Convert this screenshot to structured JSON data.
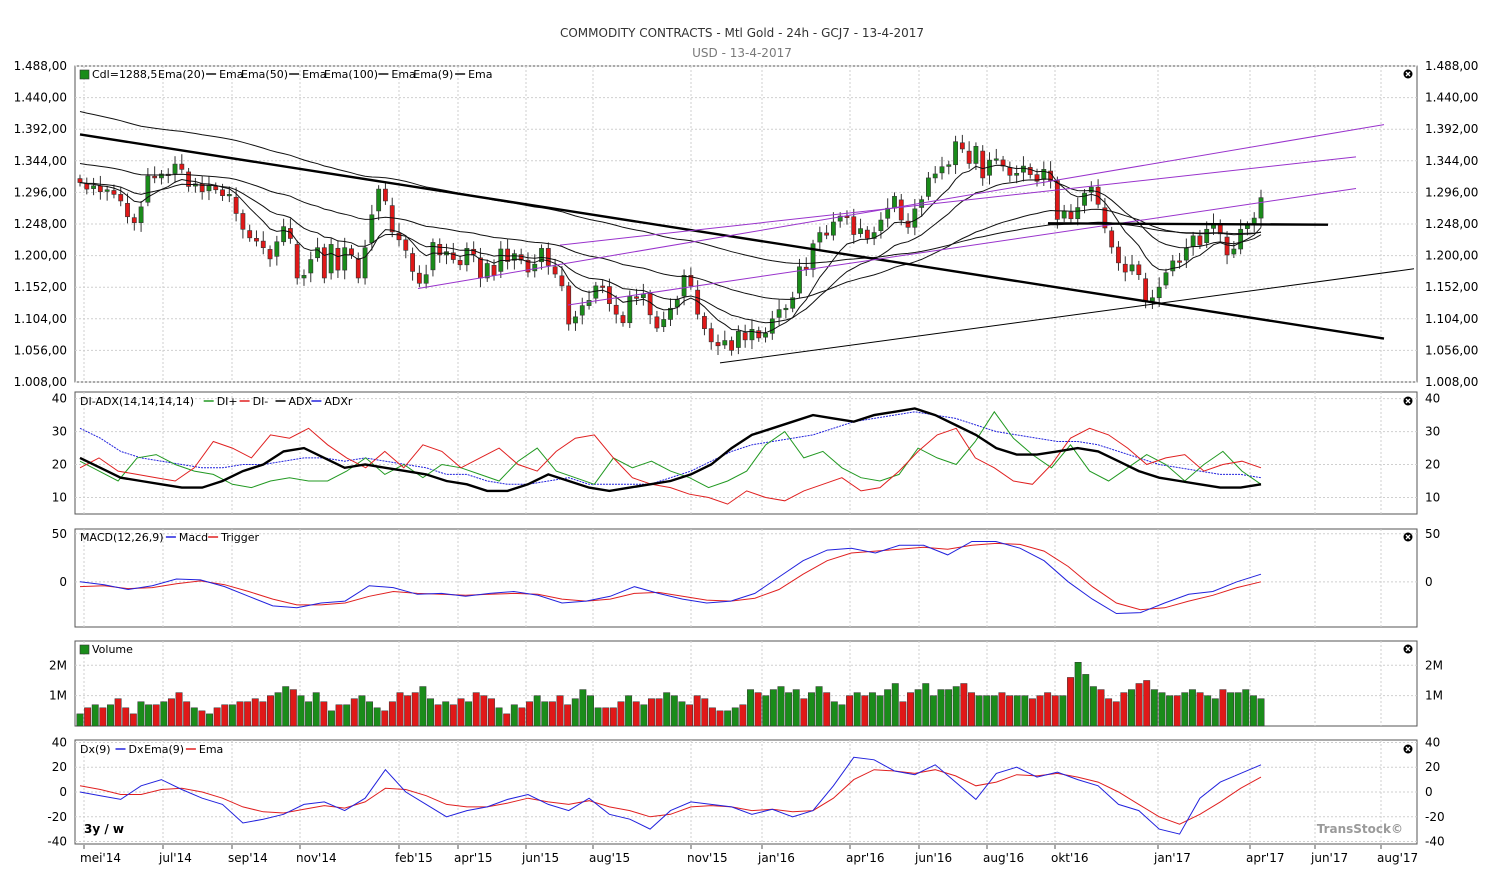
{
  "title": "COMMODITY CONTRACTS - Mtl Gold - 24h - GCJ7 - 13-4-2017",
  "subtitle": "USD - 13-4-2017",
  "period_label": "3y / w",
  "watermark": "TransStock©",
  "colors": {
    "up": "#1a8c1a",
    "down": "#e01818",
    "purple": "#9933cc",
    "blue": "#2222dd",
    "red": "#e02020",
    "green": "#229922"
  },
  "chart_data": [
    {
      "panel": "price",
      "type": "candlestick",
      "legend": [
        "Cdl=1288,5",
        "Ema(20)",
        "Ema",
        "Ema(50)",
        "Ema",
        "Ema(100)",
        "Ema",
        "Ema(9)",
        "Ema"
      ],
      "y_ticks": [
        "1.008,00",
        "1.056,00",
        "1.104,00",
        "1.152,00",
        "1.200,00",
        "1.248,00",
        "1.296,00",
        "1.344,00",
        "1.392,00",
        "1.440,00",
        "1.488,00"
      ],
      "ylim": [
        1008,
        1488
      ],
      "last_close": 1288.5,
      "close": [
        1311,
        1301,
        1306,
        1297,
        1300,
        1293,
        1283,
        1259,
        1250,
        1274,
        1321,
        1318,
        1324,
        1322,
        1339,
        1331,
        1305,
        1309,
        1297,
        1306,
        1300,
        1291,
        1293,
        1264,
        1240,
        1227,
        1222,
        1212,
        1195,
        1221,
        1244,
        1226,
        1166,
        1170,
        1194,
        1212,
        1166,
        1217,
        1178,
        1212,
        1201,
        1166,
        1212,
        1262,
        1301,
        1283,
        1236,
        1224,
        1208,
        1176,
        1158,
        1171,
        1220,
        1201,
        1206,
        1194,
        1186,
        1211,
        1202,
        1166,
        1188,
        1170,
        1210,
        1191,
        1203,
        1193,
        1175,
        1187,
        1211,
        1185,
        1172,
        1154,
        1096,
        1107,
        1124,
        1132,
        1154,
        1153,
        1127,
        1111,
        1098,
        1138,
        1135,
        1142,
        1110,
        1090,
        1103,
        1120,
        1133,
        1170,
        1154,
        1111,
        1089,
        1069,
        1063,
        1071,
        1056,
        1085,
        1072,
        1088,
        1075,
        1082,
        1104,
        1118,
        1120,
        1136,
        1183,
        1179,
        1218,
        1235,
        1231,
        1251,
        1260,
        1259,
        1232,
        1241,
        1226,
        1235,
        1254,
        1272,
        1290,
        1254,
        1243,
        1271,
        1285,
        1318,
        1324,
        1335,
        1338,
        1373,
        1362,
        1340,
        1366,
        1318,
        1345,
        1347,
        1336,
        1322,
        1325,
        1336,
        1323,
        1313,
        1331,
        1314,
        1255,
        1268,
        1256,
        1273,
        1295,
        1304,
        1278,
        1242,
        1213,
        1189,
        1175,
        1186,
        1171,
        1130,
        1136,
        1152,
        1174,
        1192,
        1190,
        1211,
        1230,
        1216,
        1240,
        1249,
        1233,
        1201,
        1210,
        1240,
        1246,
        1257,
        1288
      ],
      "trendlines": [
        {
          "from": [
            "2014-05",
            1384
          ],
          "to": [
            "2017-07",
            1074
          ],
          "style": "thick"
        },
        {
          "from": [
            "2015-03",
            1150
          ],
          "to": [
            "2017-07",
            1399
          ],
          "style": "purple"
        },
        {
          "from": [
            "2015-04",
            1216
          ],
          "to": [
            "2017-06",
            1350
          ],
          "style": "purple"
        },
        {
          "from": [
            "2015-07",
            1125
          ],
          "to": [
            "2017-06",
            1302
          ],
          "style": "purple"
        },
        {
          "from": [
            "2015-12",
            1037
          ],
          "to": [
            "2017-08",
            1180
          ],
          "style": "thin"
        },
        {
          "from": [
            "2016-10",
            1249
          ],
          "to": [
            "2017-05",
            1247
          ],
          "style": "thick"
        }
      ]
    },
    {
      "panel": "adx",
      "type": "line",
      "legend": [
        "DI-ADX(14,14,14,14)",
        "DI+",
        "DI-",
        "ADX",
        "ADXr"
      ],
      "y_ticks": [
        "10",
        "20",
        "30",
        "40"
      ],
      "ylim": [
        5,
        42
      ],
      "series": [
        {
          "name": "DI+",
          "values": [
            21,
            18,
            15,
            22,
            23,
            20,
            18,
            17,
            14,
            13,
            15,
            16,
            15,
            15,
            18,
            22,
            17,
            20,
            16,
            20,
            19,
            17,
            15,
            21,
            25,
            18,
            16,
            14,
            22,
            19,
            21,
            18,
            16,
            13,
            15,
            18,
            26,
            30,
            22,
            24,
            19,
            16,
            15,
            17,
            25,
            22,
            20,
            27,
            36,
            28,
            23,
            19,
            26,
            18,
            15,
            19,
            23,
            20,
            15,
            20,
            24,
            18,
            14
          ]
        },
        {
          "name": "DI-",
          "values": [
            19,
            22,
            18,
            17,
            16,
            15,
            19,
            27,
            25,
            22,
            29,
            28,
            31,
            26,
            22,
            19,
            24,
            19,
            26,
            24,
            19,
            22,
            25,
            20,
            18,
            24,
            28,
            29,
            22,
            16,
            14,
            13,
            11,
            10,
            8,
            12,
            10,
            9,
            12,
            14,
            16,
            12,
            13,
            18,
            24,
            29,
            31,
            22,
            19,
            15,
            14,
            20,
            28,
            31,
            29,
            25,
            20,
            22,
            23,
            18,
            20,
            21,
            19
          ]
        },
        {
          "name": "ADX",
          "values": [
            22,
            19,
            16,
            15,
            14,
            13,
            13,
            15,
            18,
            20,
            24,
            25,
            22,
            19,
            20,
            19,
            18,
            17,
            15,
            14,
            12,
            12,
            14,
            17,
            15,
            13,
            12,
            13,
            14,
            15,
            17,
            20,
            25,
            29,
            31,
            33,
            35,
            34,
            33,
            35,
            36,
            37,
            35,
            32,
            29,
            25,
            23,
            23,
            24,
            25,
            24,
            21,
            18,
            16,
            15,
            14,
            13,
            13,
            14
          ]
        },
        {
          "name": "ADXr",
          "values": [
            31,
            28,
            24,
            22,
            21,
            20,
            19,
            19,
            20,
            20,
            21,
            22,
            22,
            21,
            22,
            21,
            20,
            19,
            17,
            17,
            15,
            14,
            14,
            15,
            16,
            14,
            14,
            14,
            14,
            16,
            18,
            21,
            24,
            26,
            27,
            28,
            29,
            31,
            33,
            34,
            35,
            36,
            35,
            34,
            32,
            30,
            29,
            28,
            27,
            27,
            26,
            24,
            22,
            20,
            19,
            18,
            17,
            17,
            16
          ]
        }
      ]
    },
    {
      "panel": "macd",
      "type": "line",
      "legend": [
        "MACD(12,26,9)",
        "Macd",
        "Trigger"
      ],
      "y_ticks": [
        "0",
        "50"
      ],
      "ylim": [
        -47,
        55
      ],
      "series": [
        {
          "name": "Macd",
          "values": [
            0,
            -3,
            -8,
            -4,
            3,
            2,
            -5,
            -15,
            -25,
            -27,
            -22,
            -20,
            -4,
            -6,
            -13,
            -12,
            -15,
            -12,
            -10,
            -14,
            -22,
            -20,
            -15,
            -5,
            -12,
            -18,
            -22,
            -20,
            -12,
            5,
            22,
            33,
            35,
            30,
            38,
            38,
            28,
            42,
            42,
            35,
            22,
            0,
            -18,
            -33,
            -32,
            -22,
            -13,
            -10,
            0,
            8
          ]
        },
        {
          "name": "Trigger",
          "values": [
            -5,
            -4,
            -7,
            -6,
            -2,
            1,
            -3,
            -10,
            -18,
            -24,
            -24,
            -22,
            -15,
            -10,
            -12,
            -13,
            -14,
            -13,
            -12,
            -13,
            -18,
            -20,
            -18,
            -12,
            -11,
            -15,
            -19,
            -20,
            -17,
            -8,
            8,
            22,
            30,
            32,
            34,
            36,
            34,
            38,
            40,
            39,
            32,
            16,
            -5,
            -22,
            -29,
            -27,
            -20,
            -14,
            -6,
            0
          ]
        }
      ]
    },
    {
      "panel": "volume",
      "type": "bar",
      "legend": [
        "Volume"
      ],
      "y_ticks": [
        "1M",
        "2M"
      ],
      "ylim": [
        0,
        2.8
      ],
      "values": [
        0.4,
        0.6,
        0.7,
        0.6,
        0.7,
        0.9,
        0.6,
        0.4,
        0.8,
        0.7,
        0.7,
        0.8,
        0.9,
        1.1,
        0.8,
        0.6,
        0.5,
        0.4,
        0.6,
        0.7,
        0.7,
        0.8,
        0.8,
        0.9,
        0.8,
        1.0,
        1.1,
        1.3,
        1.2,
        1.0,
        0.8,
        1.1,
        0.8,
        0.5,
        0.7,
        0.7,
        0.9,
        1.0,
        0.8,
        0.6,
        0.5,
        0.8,
        1.1,
        1.0,
        1.1,
        1.3,
        0.9,
        0.7,
        0.8,
        0.7,
        0.9,
        0.8,
        1.1,
        1.0,
        0.9,
        0.6,
        0.4,
        0.7,
        0.6,
        0.8,
        1.0,
        0.8,
        0.8,
        1.0,
        0.7,
        0.9,
        1.2,
        1.0,
        0.6,
        0.6,
        0.6,
        0.8,
        1.0,
        0.8,
        0.7,
        0.9,
        0.9,
        1.1,
        1.0,
        0.8,
        0.7,
        1.0,
        0.9,
        0.6,
        0.5,
        0.5,
        0.6,
        0.7,
        1.2,
        1.1,
        1.0,
        1.2,
        1.3,
        1.1,
        1.2,
        0.9,
        1.1,
        1.3,
        1.1,
        0.8,
        0.7,
        1.0,
        1.1,
        1.0,
        1.1,
        1.0,
        1.2,
        1.4,
        0.8,
        1.1,
        1.2,
        1.4,
        1.0,
        1.2,
        1.2,
        1.3,
        1.4,
        1.1,
        1.0,
        1.0,
        1.0,
        1.1,
        1.0,
        1.0,
        1.0,
        0.9,
        1.0,
        1.1,
        1.0,
        1.0,
        1.6,
        2.1,
        1.7,
        1.3,
        1.2,
        0.9,
        0.8,
        1.1,
        1.2,
        1.4,
        1.5,
        1.2,
        1.1,
        1.0,
        1.0,
        1.1,
        1.2,
        1.1,
        1.0,
        0.9,
        1.2,
        1.1,
        1.1,
        1.2,
        1.0,
        0.9
      ]
    },
    {
      "panel": "dx",
      "type": "line",
      "legend": [
        "Dx(9)",
        "Dx",
        "Ema(9)",
        "Ema"
      ],
      "y_ticks": [
        "-40",
        "-20",
        "0",
        "20",
        "40"
      ],
      "ylim": [
        -42,
        42
      ],
      "series": [
        {
          "name": "Dx",
          "values": [
            0,
            -3,
            -6,
            5,
            10,
            2,
            -5,
            -10,
            -25,
            -22,
            -18,
            -10,
            -8,
            -15,
            -5,
            18,
            0,
            -10,
            -20,
            -15,
            -12,
            -6,
            -2,
            -10,
            -15,
            -5,
            -18,
            -22,
            -30,
            -15,
            -8,
            -10,
            -12,
            -18,
            -14,
            -20,
            -15,
            5,
            28,
            26,
            17,
            14,
            22,
            8,
            -6,
            15,
            20,
            12,
            16,
            10,
            5,
            -10,
            -15,
            -30,
            -34,
            -5,
            8,
            15,
            22
          ]
        },
        {
          "name": "Ema",
          "values": [
            5,
            2,
            -2,
            -2,
            2,
            3,
            0,
            -5,
            -12,
            -16,
            -17,
            -14,
            -11,
            -13,
            -8,
            3,
            2,
            -3,
            -10,
            -12,
            -12,
            -9,
            -5,
            -8,
            -10,
            -7,
            -12,
            -15,
            -20,
            -18,
            -12,
            -11,
            -12,
            -15,
            -14,
            -16,
            -15,
            -5,
            10,
            18,
            17,
            15,
            18,
            13,
            5,
            8,
            14,
            13,
            15,
            12,
            8,
            0,
            -10,
            -20,
            -26,
            -18,
            -8,
            3,
            12
          ]
        }
      ]
    }
  ],
  "x_labels": [
    "mei'14",
    "jul'14",
    "sep'14",
    "nov'14",
    "feb'15",
    "apr'15",
    "jun'15",
    "aug'15",
    "nov'15",
    "jan'16",
    "apr'16",
    "jun'16",
    "aug'16",
    "okt'16",
    "jan'17",
    "apr'17",
    "jun'17",
    "aug'17"
  ]
}
